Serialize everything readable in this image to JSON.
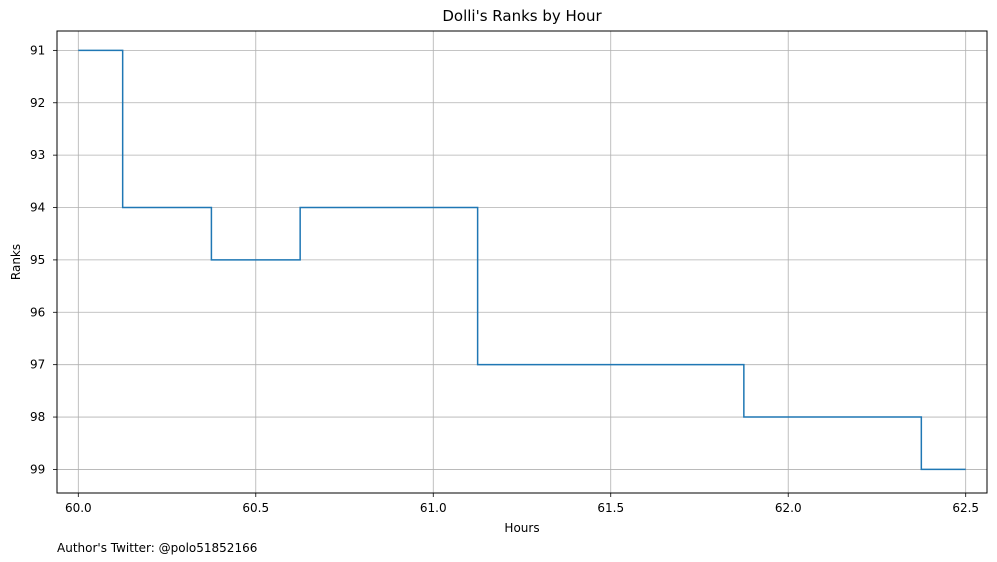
{
  "chart_data": {
    "type": "line",
    "title": "Dolli's Ranks by Hour",
    "xlabel": "Hours",
    "ylabel": "Ranks",
    "xlim": [
      59.94,
      62.56
    ],
    "ylim": [
      99.45,
      90.63
    ],
    "y_inverted": true,
    "x_ticks": [
      "60.0",
      "60.5",
      "61.0",
      "61.5",
      "62.0",
      "62.5"
    ],
    "y_ticks": [
      "91",
      "92",
      "93",
      "94",
      "95",
      "96",
      "97",
      "98",
      "99"
    ],
    "grid": true,
    "step": "post",
    "series": [
      {
        "color": "#1f77b4",
        "x": [
          60.0,
          60.125,
          60.375,
          60.625,
          61.125,
          61.875,
          62.375,
          62.5
        ],
        "y": [
          91,
          94,
          95,
          94,
          97,
          98,
          99,
          99
        ]
      }
    ]
  },
  "footer": {
    "note": "Author's Twitter: @polo51852166"
  }
}
